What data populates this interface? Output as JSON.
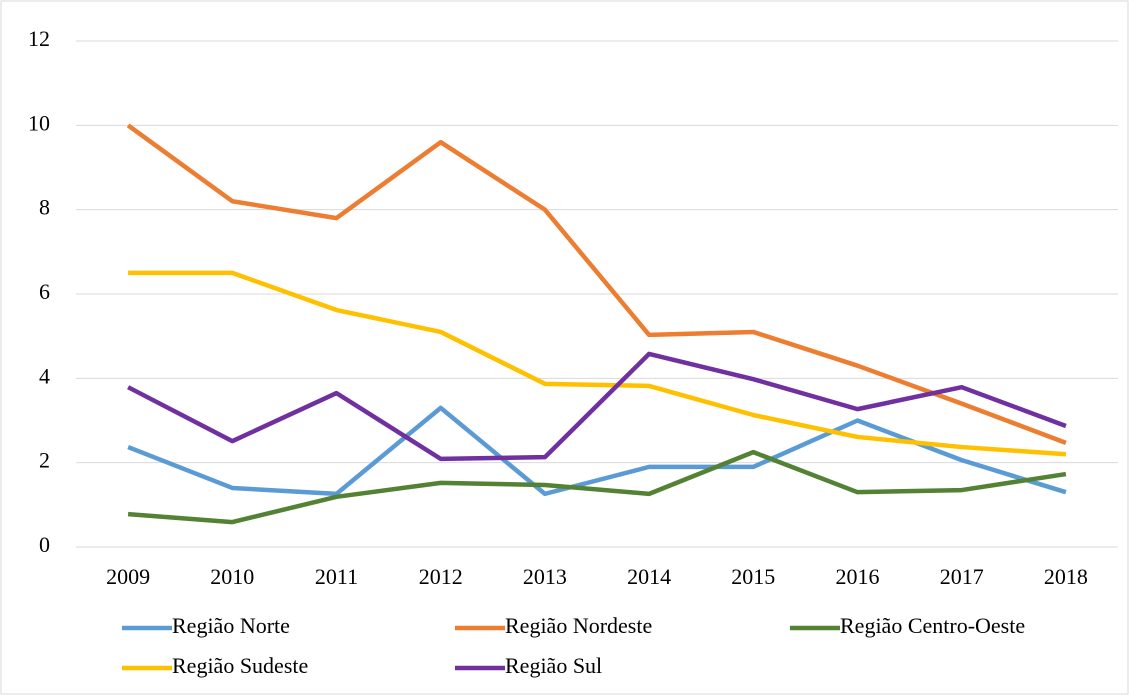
{
  "chart_data": {
    "type": "line",
    "categories": [
      "2009",
      "2010",
      "2011",
      "2012",
      "2013",
      "2014",
      "2015",
      "2016",
      "2017",
      "2018"
    ],
    "series": [
      {
        "name": "Região Norte",
        "color": "#5b9bd5",
        "values": [
          2.37,
          1.4,
          1.26,
          3.3,
          1.26,
          1.9,
          1.9,
          3.0,
          2.06,
          1.3
        ]
      },
      {
        "name": "Região Nordeste",
        "color": "#ed7d31",
        "values": [
          10.0,
          8.2,
          7.8,
          9.6,
          8.0,
          5.03,
          5.1,
          4.3,
          3.4,
          2.47
        ]
      },
      {
        "name": "Região Centro-Oeste",
        "color": "#548235",
        "values": [
          0.78,
          0.59,
          1.19,
          1.52,
          1.47,
          1.26,
          2.25,
          1.3,
          1.35,
          1.73
        ]
      },
      {
        "name": "Região Sudeste",
        "color": "#ffc000",
        "values": [
          6.5,
          6.5,
          5.62,
          5.1,
          3.87,
          3.82,
          3.13,
          2.61,
          2.37,
          2.2
        ]
      },
      {
        "name": "Região Sul",
        "color": "#7030a0",
        "values": [
          3.79,
          2.51,
          3.65,
          2.09,
          2.13,
          4.58,
          3.98,
          3.27,
          3.79,
          2.87
        ]
      }
    ],
    "ylim": [
      0,
      12
    ],
    "yticks": [
      0,
      2,
      4,
      6,
      8,
      10,
      12
    ],
    "grid": true,
    "legend": "bottom"
  }
}
